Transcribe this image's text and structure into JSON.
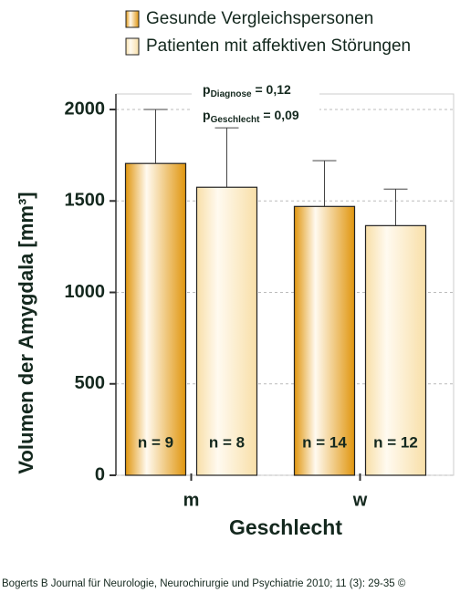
{
  "chart_data": {
    "type": "bar",
    "x_label": "Geschlecht",
    "y_label": "Volumen der Amygdala [mm³]",
    "categories": [
      "m",
      "w"
    ],
    "series": [
      {
        "name": "Gesunde Vergleichspersonen",
        "color": "#e0960f",
        "values": [
          1705,
          1470
        ],
        "errors": [
          295,
          250
        ],
        "n_labels": [
          "n = 9",
          "n = 14"
        ]
      },
      {
        "name": "Patienten mit affektiven Störungen",
        "color": "#f8dfa8",
        "values": [
          1575,
          1365
        ],
        "errors": [
          325,
          200
        ],
        "n_labels": [
          "n = 8",
          "n = 12"
        ]
      }
    ],
    "ylim": [
      0,
      2085
    ],
    "yticks": [
      0,
      500,
      1000,
      1500,
      2000
    ],
    "grid": true,
    "annotations": [
      {
        "main": "p",
        "sub": "Diagnose",
        "text": " = 0,12"
      },
      {
        "main": "p",
        "sub": "Geschlecht",
        "text": " = 0,09"
      }
    ],
    "source": "Bogerts B Journal für Neurologie, Neurochirurgie und Psychiatrie 2010; 11 (3): 29-35 ©"
  }
}
